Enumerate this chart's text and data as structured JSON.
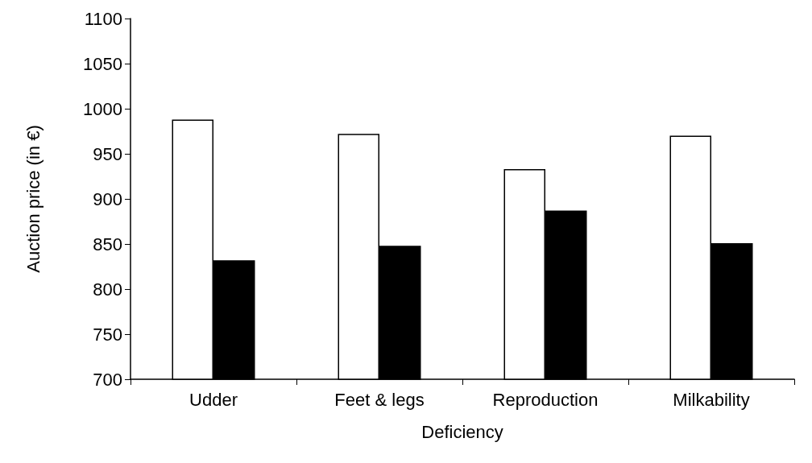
{
  "chart_data": {
    "type": "bar",
    "xlabel": "Deficiency",
    "ylabel": "Auction price (in €)",
    "categories": [
      "Udder",
      "Feet & legs",
      "Reproduction",
      "Milkability"
    ],
    "series": [
      {
        "color": "#ffffff",
        "values": [
          988,
          972,
          933,
          970
        ]
      },
      {
        "color": "#000000",
        "values": [
          832,
          848,
          887,
          851
        ]
      }
    ],
    "ylim": [
      700,
      1100
    ],
    "yticks": [
      700,
      750,
      800,
      850,
      900,
      950,
      1000,
      1050,
      1100
    ],
    "grid": false
  }
}
